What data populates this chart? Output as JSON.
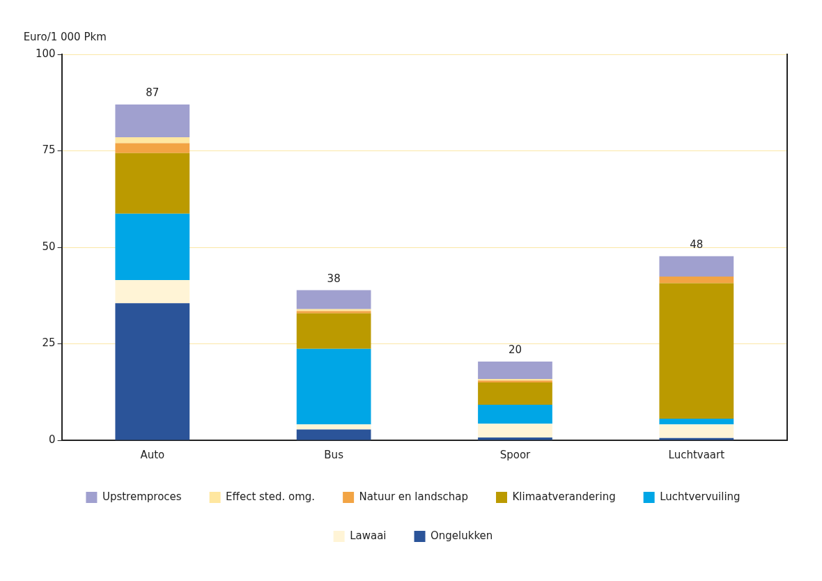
{
  "chart_data": {
    "type": "bar",
    "stacked": true,
    "ylabel": "Euro/1 000 Pkm",
    "categories": [
      "Auto",
      "Bus",
      "Spoor",
      "Luchtvaart"
    ],
    "series": [
      {
        "name": "Ongelukken",
        "color": "#2b5499",
        "values": [
          35.5,
          2.8,
          0.7,
          0.6
        ]
      },
      {
        "name": "Lawaai",
        "color": "#fff4d6",
        "values": [
          6,
          1.3,
          3.6,
          3.5
        ]
      },
      {
        "name": "Luchtvervuiling",
        "color": "#00a6e6",
        "values": [
          17.2,
          19.6,
          4.9,
          1.5
        ]
      },
      {
        "name": "Klimaatverandering",
        "color": "#bb9a00",
        "values": [
          15.7,
          9.2,
          5.8,
          35.1
        ]
      },
      {
        "name": "Natuur en landschap",
        "color": "#f2a444",
        "values": [
          2.6,
          0.6,
          0.5,
          1.7
        ]
      },
      {
        "name": "Effect sted. omg.",
        "color": "#ffe7a0",
        "values": [
          1.5,
          0.5,
          0.4,
          0
        ]
      },
      {
        "name": "Upstremproces",
        "color": "#a0a0cf",
        "values": [
          8.5,
          4.9,
          4.5,
          5.3
        ]
      }
    ],
    "totals": [
      "87",
      "38",
      "20",
      "48"
    ],
    "ylim": [
      0,
      100
    ],
    "yticks": [
      0,
      25,
      50,
      75,
      100
    ],
    "grid": "y",
    "legend": "bottom"
  }
}
